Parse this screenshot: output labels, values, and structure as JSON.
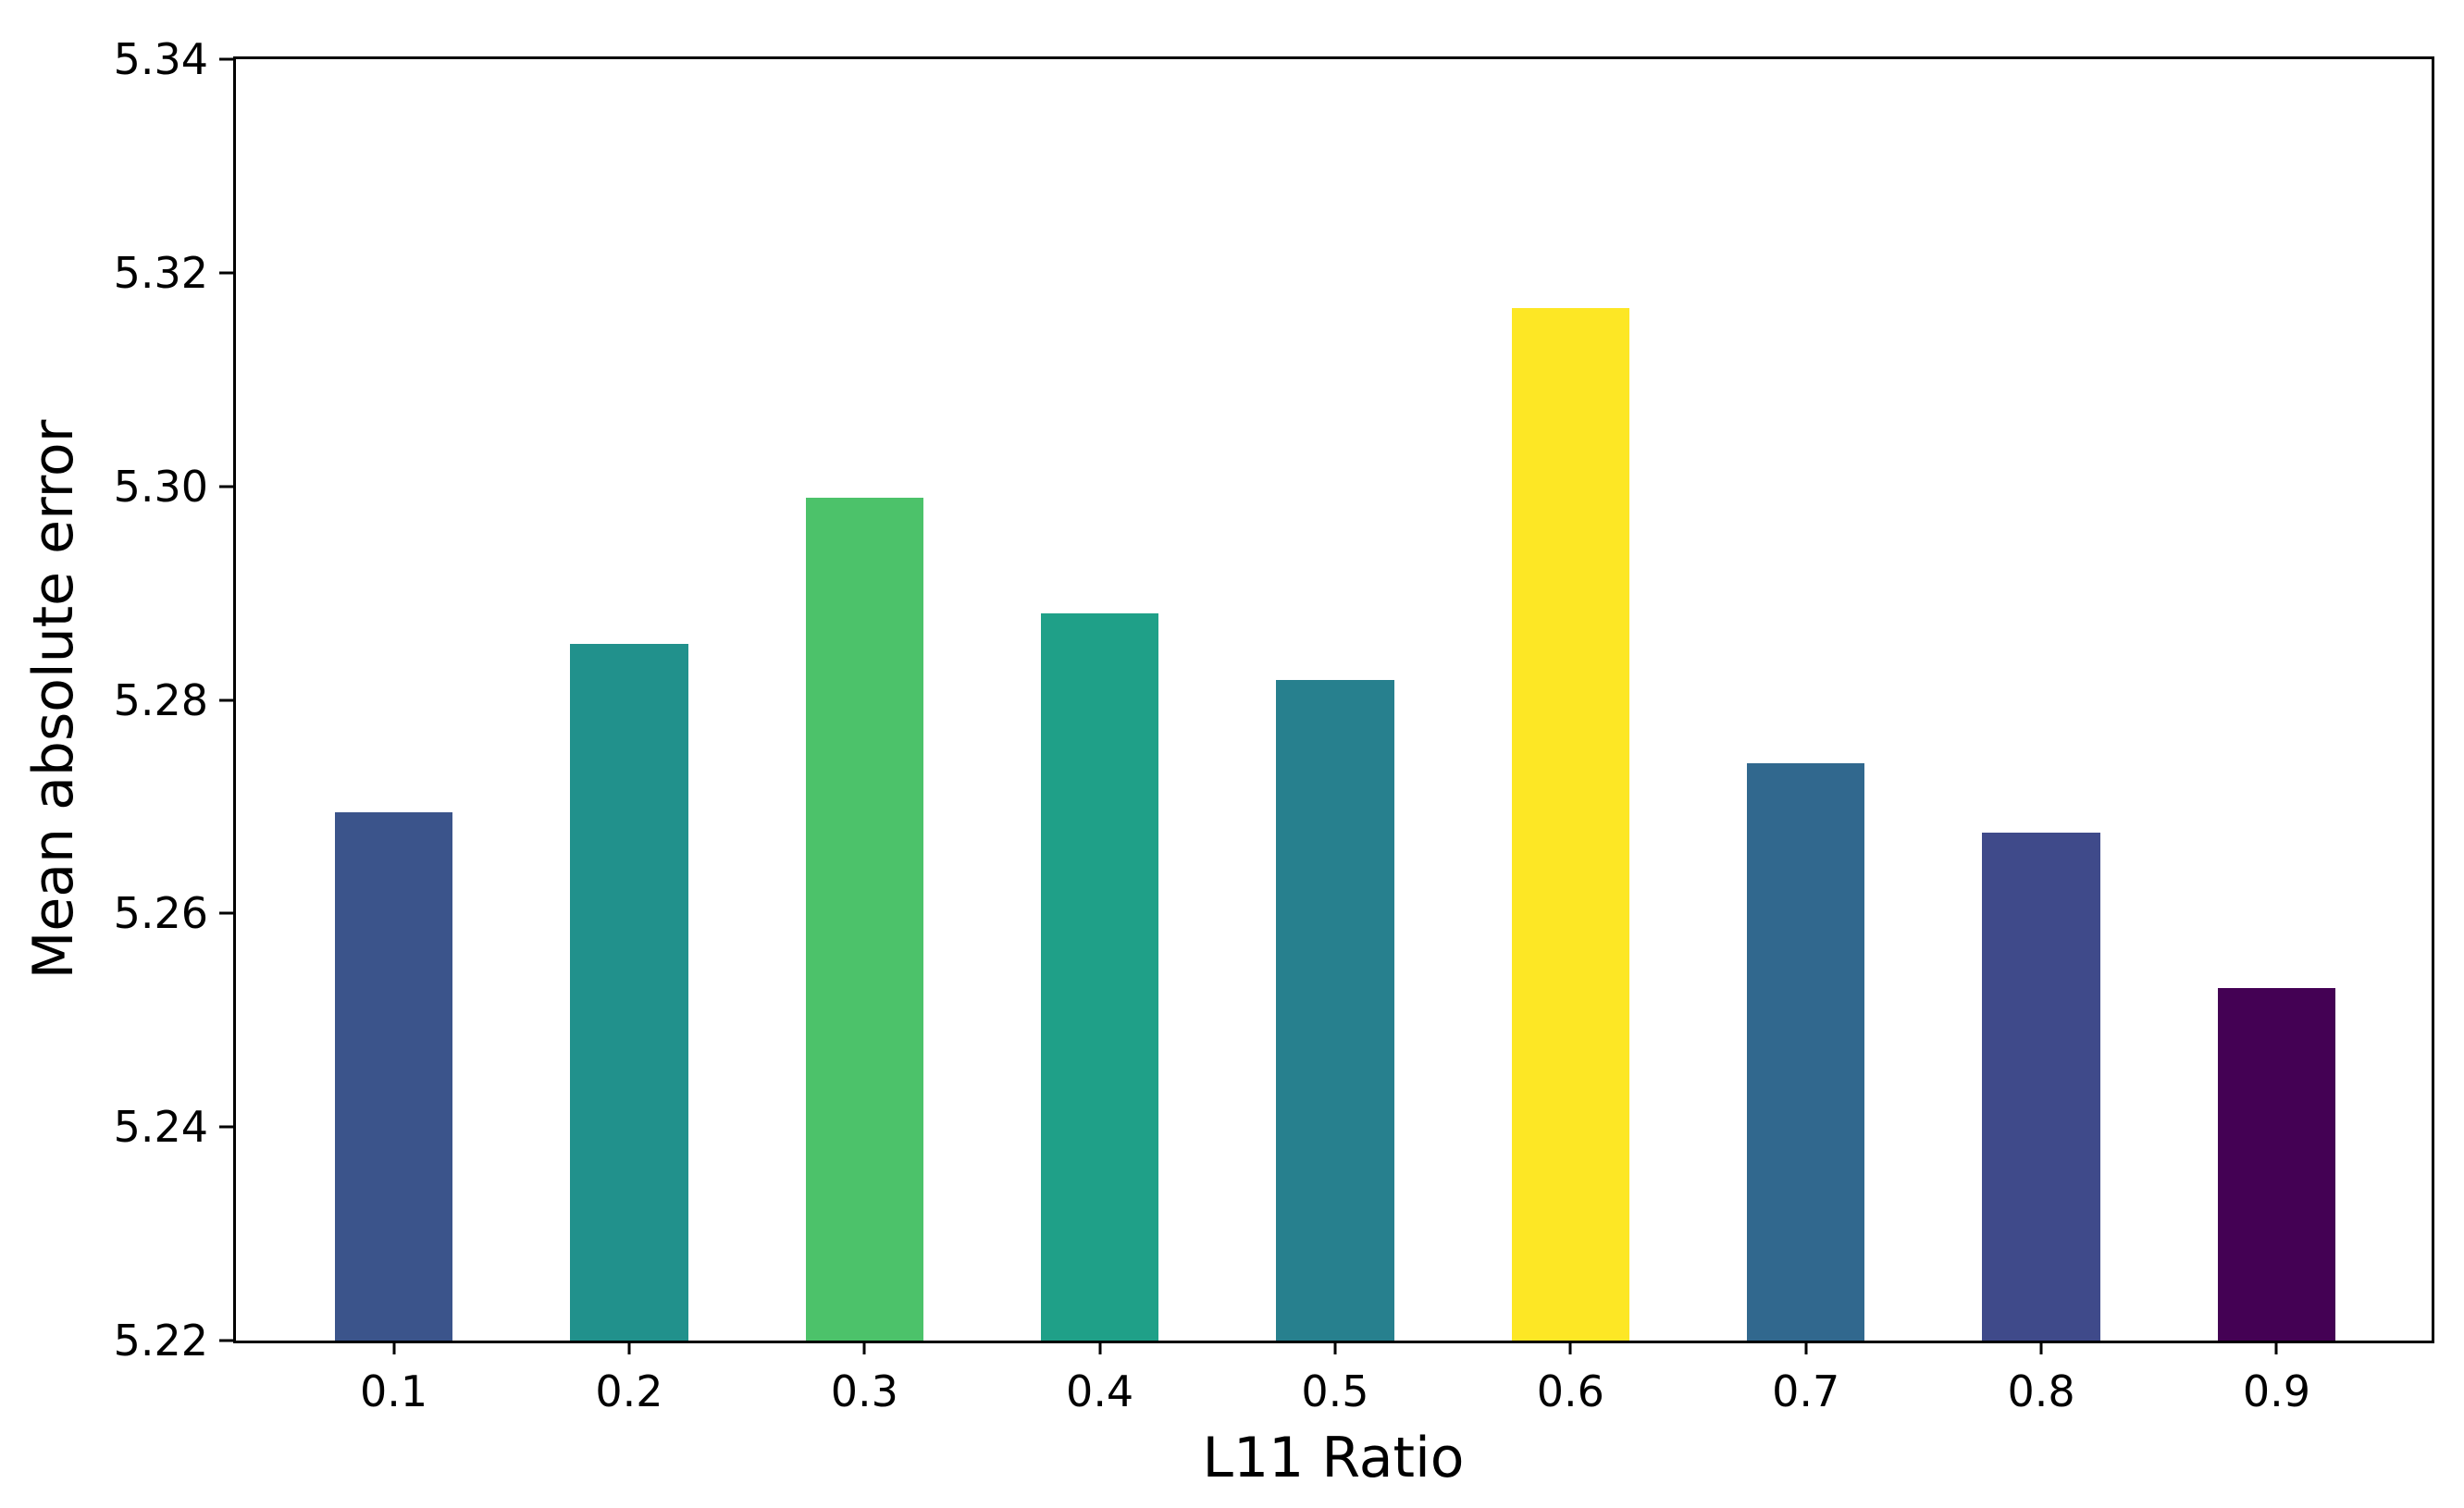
{
  "chart_data": {
    "type": "bar",
    "xlabel": "L11 Ratio",
    "ylabel": "Mean absolute error",
    "categories": [
      "0.1",
      "0.2",
      "0.3",
      "0.4",
      "0.5",
      "0.6",
      "0.7",
      "0.8",
      "0.9"
    ],
    "values": [
      5.2695,
      5.2852,
      5.2989,
      5.2881,
      5.2819,
      5.3167,
      5.2741,
      5.2676,
      5.253
    ],
    "bar_colors": [
      "#3b548b",
      "#21918c",
      "#4cc26a",
      "#1fa088",
      "#27808e",
      "#fde725",
      "#31688e",
      "#3f4a8a",
      "#440154"
    ],
    "ylim": [
      5.22,
      5.34
    ],
    "ytick_labels": [
      "5.22",
      "5.24",
      "5.26",
      "5.28",
      "5.30",
      "5.32",
      "5.34"
    ],
    "ytick_values": [
      5.22,
      5.24,
      5.26,
      5.28,
      5.3,
      5.32,
      5.34
    ],
    "grid": false,
    "legend_position": "none"
  }
}
